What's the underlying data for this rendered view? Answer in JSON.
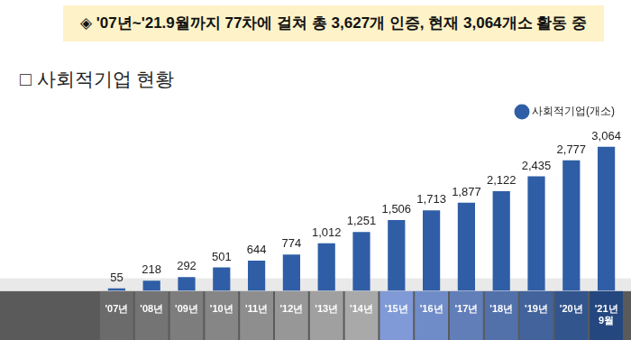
{
  "banner": "◈ '07년~'21.9월까지 77차에 걸쳐 총 3,627개 인증, 현재 3,064개소 활동 중",
  "chart_data": {
    "type": "bar",
    "title": "□ 사회적기업 현황",
    "categories": [
      "'07년",
      "'08년",
      "'09년",
      "'10년",
      "'11년",
      "'12년",
      "'13년",
      "'14년",
      "'15년",
      "'16년",
      "'17년",
      "'18년",
      "'19년",
      "'20년",
      [
        "'21년",
        "9월"
      ]
    ],
    "series": [
      {
        "name": "사회적기업(개소)",
        "color": "#2f5ea6",
        "values": [
          55,
          218,
          292,
          501,
          644,
          774,
          1012,
          1251,
          1506,
          1713,
          1877,
          2122,
          2435,
          2777,
          3064
        ],
        "value_labels": [
          "55",
          "218",
          "292",
          "501",
          "644",
          "774",
          "1,012",
          "1,251",
          "1,506",
          "1,713",
          "1,877",
          "2,122",
          "2,435",
          "2,777",
          "3,064"
        ]
      }
    ],
    "data_labels": true,
    "grid": false,
    "legend": "top-right",
    "tick_labels": "x"
  }
}
